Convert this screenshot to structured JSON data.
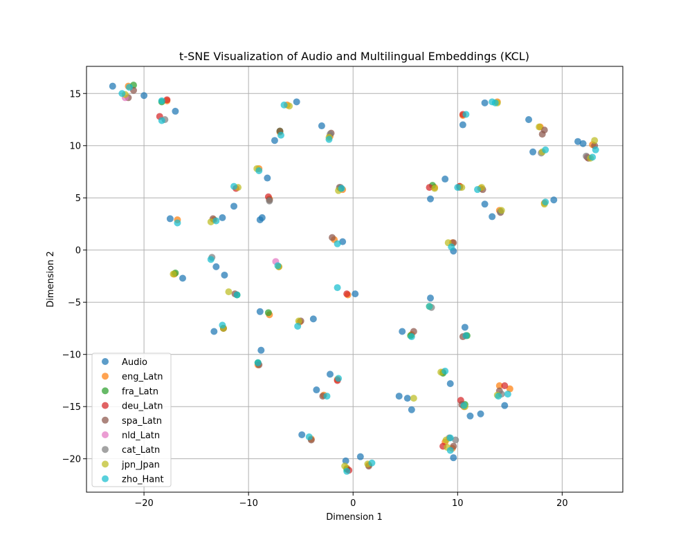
{
  "chart_data": {
    "type": "scatter",
    "title": "t-SNE Visualization of Audio and Multilingual Embeddings (KCL)",
    "xlabel": "Dimension 1",
    "ylabel": "Dimension 2",
    "xlim": [
      -25.5,
      25.8
    ],
    "ylim": [
      -23.2,
      17.6
    ],
    "xticks": [
      -20,
      -10,
      0,
      10,
      20
    ],
    "yticks": [
      -20,
      -15,
      -10,
      -5,
      0,
      5,
      10,
      15
    ],
    "xtick_labels": [
      "−20",
      "−10",
      "0",
      "10",
      "20"
    ],
    "ytick_labels": [
      "−20",
      "−15",
      "−10",
      "−5",
      "0",
      "5",
      "10",
      "15"
    ],
    "grid": true,
    "legend_position": "lower-left",
    "series": [
      {
        "name": "Audio",
        "color": "#1f77b4",
        "points": [
          [
            -23.0,
            15.7
          ],
          [
            -20.0,
            14.8
          ],
          [
            -17.0,
            13.3
          ],
          [
            -5.4,
            14.2
          ],
          [
            -3.0,
            11.9
          ],
          [
            -7.5,
            10.5
          ],
          [
            -8.2,
            6.9
          ],
          [
            -11.4,
            4.2
          ],
          [
            -12.5,
            3.1
          ],
          [
            -17.5,
            3.0
          ],
          [
            -8.7,
            3.1
          ],
          [
            -8.9,
            2.9
          ],
          [
            -13.1,
            -1.6
          ],
          [
            -12.3,
            -2.4
          ],
          [
            -16.3,
            -2.7
          ],
          [
            -1.0,
            0.8
          ],
          [
            0.2,
            -4.2
          ],
          [
            -8.9,
            -5.9
          ],
          [
            -3.8,
            -6.6
          ],
          [
            -13.3,
            -7.8
          ],
          [
            -8.8,
            -9.6
          ],
          [
            -2.2,
            -11.9
          ],
          [
            -3.5,
            -13.4
          ],
          [
            -4.9,
            -17.7
          ],
          [
            -0.7,
            -20.2
          ],
          [
            0.7,
            -19.8
          ],
          [
            12.6,
            14.1
          ],
          [
            16.8,
            12.5
          ],
          [
            10.5,
            12.0
          ],
          [
            8.8,
            6.8
          ],
          [
            7.4,
            4.9
          ],
          [
            12.6,
            4.4
          ],
          [
            13.3,
            3.2
          ],
          [
            17.2,
            9.4
          ],
          [
            21.5,
            10.4
          ],
          [
            22.0,
            10.2
          ],
          [
            19.2,
            4.8
          ],
          [
            9.6,
            -0.1
          ],
          [
            7.4,
            -4.6
          ],
          [
            4.7,
            -7.8
          ],
          [
            10.7,
            -7.4
          ],
          [
            9.3,
            -12.8
          ],
          [
            4.4,
            -14.0
          ],
          [
            5.2,
            -14.2
          ],
          [
            5.6,
            -15.3
          ],
          [
            11.2,
            -15.9
          ],
          [
            12.2,
            -15.7
          ],
          [
            14.5,
            -14.9
          ],
          [
            9.6,
            -19.9
          ]
        ]
      },
      {
        "name": "eng_Latn",
        "color": "#ff7f0e",
        "points": [
          [
            -21.5,
            15.7
          ],
          [
            -17.8,
            14.3
          ],
          [
            -7.0,
            11.3
          ],
          [
            -6.3,
            13.9
          ],
          [
            -2.2,
            10.9
          ],
          [
            10.5,
            12.9
          ],
          [
            13.8,
            14.2
          ],
          [
            17.9,
            11.8
          ],
          [
            22.9,
            10.1
          ],
          [
            7.8,
            6.0
          ],
          [
            12.2,
            5.9
          ],
          [
            10.2,
            6.1
          ],
          [
            -1.0,
            5.8
          ],
          [
            -16.8,
            2.9
          ],
          [
            -13.3,
            2.9
          ],
          [
            -9.0,
            7.8
          ],
          [
            -8.0,
            4.9
          ],
          [
            -1.8,
            1.0
          ],
          [
            9.5,
            0.7
          ],
          [
            14.0,
            3.8
          ],
          [
            18.3,
            4.5
          ],
          [
            -17.1,
            -2.3
          ],
          [
            -7.1,
            -1.6
          ],
          [
            -0.5,
            -4.3
          ],
          [
            -12.4,
            -7.5
          ],
          [
            -5.1,
            -6.9
          ],
          [
            5.6,
            -8.1
          ],
          [
            10.8,
            -8.2
          ],
          [
            -8.0,
            -6.2
          ],
          [
            -9.1,
            -11.0
          ],
          [
            -1.5,
            -12.4
          ],
          [
            -2.8,
            -13.9
          ],
          [
            14.0,
            -13.0
          ],
          [
            15.0,
            -13.3
          ],
          [
            10.6,
            -15.0
          ],
          [
            8.6,
            -11.7
          ],
          [
            -4.0,
            -18.1
          ],
          [
            -0.6,
            -20.9
          ],
          [
            1.5,
            -20.6
          ],
          [
            8.8,
            -18.4
          ],
          [
            9.5,
            -19.0
          ]
        ]
      },
      {
        "name": "fra_Latn",
        "color": "#2ca02c",
        "points": [
          [
            -21.0,
            15.8
          ],
          [
            -18.3,
            14.2
          ],
          [
            -7.0,
            11.4
          ],
          [
            -1.2,
            5.9
          ],
          [
            7.6,
            6.2
          ],
          [
            -17.0,
            -2.2
          ],
          [
            -11.1,
            -4.3
          ],
          [
            -8.1,
            -6.0
          ],
          [
            10.9,
            -8.2
          ],
          [
            5.5,
            -8.2
          ],
          [
            -9.1,
            -10.8
          ],
          [
            8.6,
            -11.8
          ],
          [
            10.7,
            -14.8
          ],
          [
            -0.6,
            -21.0
          ]
        ]
      },
      {
        "name": "deu_Latn",
        "color": "#d62728",
        "points": [
          [
            -18.5,
            12.8
          ],
          [
            -17.8,
            14.4
          ],
          [
            -11.2,
            5.9
          ],
          [
            -8.1,
            5.1
          ],
          [
            7.3,
            6.0
          ],
          [
            10.2,
            6.1
          ],
          [
            -1.5,
            -12.5
          ],
          [
            -0.6,
            -4.2
          ],
          [
            10.3,
            -14.4
          ],
          [
            8.6,
            -18.8
          ],
          [
            14.5,
            -13.0
          ],
          [
            -0.4,
            -21.1
          ],
          [
            22.4,
            8.9
          ],
          [
            10.5,
            13.0
          ]
        ]
      },
      {
        "name": "spa_Latn",
        "color": "#8c564b",
        "points": [
          [
            -21.0,
            15.3
          ],
          [
            -21.5,
            14.6
          ],
          [
            -7.0,
            11.4
          ],
          [
            -2.1,
            11.2
          ],
          [
            18.1,
            11.1
          ],
          [
            18.3,
            11.5
          ],
          [
            22.5,
            8.8
          ],
          [
            23.1,
            10.0
          ],
          [
            9.6,
            0.7
          ],
          [
            -2.0,
            1.2
          ],
          [
            -13.4,
            3.0
          ],
          [
            -8.0,
            4.8
          ],
          [
            -1.3,
            6.0
          ],
          [
            12.4,
            5.8
          ],
          [
            14.1,
            3.6
          ],
          [
            -11.3,
            -4.2
          ],
          [
            -12.4,
            -7.5
          ],
          [
            -5.0,
            -6.8
          ],
          [
            5.8,
            -7.8
          ],
          [
            10.5,
            -8.3
          ],
          [
            -9.0,
            -11.0
          ],
          [
            -2.9,
            -14.0
          ],
          [
            -4.0,
            -18.2
          ],
          [
            1.5,
            -20.7
          ],
          [
            9.6,
            -18.8
          ],
          [
            14.0,
            -13.5
          ],
          [
            10.4,
            -14.8
          ]
        ]
      },
      {
        "name": "nld_Latn",
        "color": "#e377c2",
        "points": [
          [
            -7.4,
            -1.1
          ],
          [
            -21.8,
            14.6
          ]
        ]
      },
      {
        "name": "cat_Latn",
        "color": "#7f7f7f",
        "points": [
          [
            -18.0,
            12.5
          ],
          [
            -8.0,
            4.7
          ],
          [
            -13.5,
            -0.7
          ],
          [
            -1.2,
            6.0
          ],
          [
            10.2,
            6.0
          ],
          [
            14.1,
            3.7
          ],
          [
            18.0,
            9.3
          ],
          [
            22.3,
            9.0
          ],
          [
            7.5,
            -5.5
          ],
          [
            9.8,
            -18.2
          ],
          [
            9.2,
            -18.0
          ],
          [
            14.2,
            -13.8
          ],
          [
            -2.2,
            11.1
          ]
        ]
      },
      {
        "name": "jpn_Jpan",
        "color": "#bcbd22",
        "points": [
          [
            -21.8,
            14.9
          ],
          [
            -6.1,
            13.8
          ],
          [
            -9.2,
            7.8
          ],
          [
            -2.3,
            10.8
          ],
          [
            -11.0,
            6.0
          ],
          [
            -1.4,
            5.7
          ],
          [
            -13.6,
            2.7
          ],
          [
            9.1,
            0.7
          ],
          [
            13.8,
            14.1
          ],
          [
            17.8,
            11.8
          ],
          [
            18.1,
            9.4
          ],
          [
            22.7,
            8.8
          ],
          [
            23.1,
            10.5
          ],
          [
            7.8,
            5.9
          ],
          [
            10.4,
            6.0
          ],
          [
            12.3,
            6.0
          ],
          [
            14.2,
            3.8
          ],
          [
            18.3,
            4.4
          ],
          [
            -7.1,
            -1.6
          ],
          [
            -17.2,
            -2.3
          ],
          [
            -11.9,
            -4.0
          ],
          [
            -5.2,
            -6.8
          ],
          [
            7.3,
            -5.4
          ],
          [
            5.8,
            -14.2
          ],
          [
            8.4,
            -11.7
          ],
          [
            13.8,
            -13.9
          ],
          [
            10.7,
            -15.0
          ],
          [
            -12.4,
            -7.5
          ],
          [
            -0.8,
            -20.7
          ],
          [
            1.4,
            -20.5
          ],
          [
            8.9,
            -18.2
          ],
          [
            9.0,
            -18.9
          ]
        ]
      },
      {
        "name": "zho_Hant",
        "color": "#17becf",
        "points": [
          [
            -22.1,
            15.0
          ],
          [
            -21.4,
            15.6
          ],
          [
            -18.3,
            12.4
          ],
          [
            -18.3,
            14.3
          ],
          [
            -6.6,
            13.9
          ],
          [
            -6.9,
            11.0
          ],
          [
            -2.3,
            10.6
          ],
          [
            -9.0,
            7.6
          ],
          [
            -11.4,
            6.1
          ],
          [
            -1.1,
            5.9
          ],
          [
            10.0,
            6.0
          ],
          [
            11.9,
            5.8
          ],
          [
            13.6,
            14.1
          ],
          [
            13.3,
            14.2
          ],
          [
            10.8,
            13.0
          ],
          [
            18.4,
            9.6
          ],
          [
            23.2,
            9.6
          ],
          [
            22.9,
            8.9
          ],
          [
            18.4,
            4.6
          ],
          [
            -16.8,
            2.6
          ],
          [
            -13.1,
            2.8
          ],
          [
            -1.5,
            0.6
          ],
          [
            9.4,
            0.3
          ],
          [
            -13.6,
            -0.9
          ],
          [
            -7.2,
            -1.5
          ],
          [
            -11.1,
            -4.3
          ],
          [
            -1.5,
            -3.6
          ],
          [
            -12.5,
            -7.2
          ],
          [
            -5.3,
            -7.3
          ],
          [
            7.3,
            -5.4
          ],
          [
            5.6,
            -8.3
          ],
          [
            10.8,
            -8.2
          ],
          [
            -9.1,
            -10.8
          ],
          [
            -1.4,
            -12.3
          ],
          [
            -2.5,
            -14.0
          ],
          [
            8.8,
            -11.6
          ],
          [
            10.6,
            -14.9
          ],
          [
            13.9,
            -14.0
          ],
          [
            14.8,
            -13.8
          ],
          [
            -4.2,
            -17.9
          ],
          [
            -0.6,
            -21.2
          ],
          [
            1.8,
            -20.4
          ],
          [
            9.3,
            -18.0
          ],
          [
            9.3,
            -19.2
          ]
        ]
      }
    ]
  }
}
